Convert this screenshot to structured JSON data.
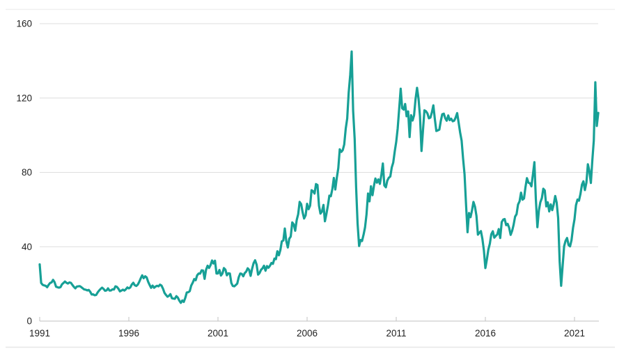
{
  "colors": {
    "line": "#17a096",
    "grid": "#dedede",
    "axis": "#c2c2c2",
    "tick_text": "#1f1f1f",
    "frame_top": "#f0f0f0",
    "frame_bottom": "#e7e7e7",
    "background": "#ffffff"
  },
  "chart_data": {
    "type": "line",
    "grid": true,
    "legend_position": "none",
    "xlabel": "",
    "ylabel": "",
    "ylim": [
      0,
      160
    ],
    "xlim": [
      1991,
      2022.5
    ],
    "y_ticks": [
      0,
      40,
      80,
      120,
      160
    ],
    "y_tick_labels": [
      "0",
      "40",
      "80",
      "120",
      "160"
    ],
    "x_tick_years": [
      1991,
      1996,
      2001,
      2006,
      2011,
      2016,
      2021
    ],
    "x_tick_labels": [
      "1991",
      "1996",
      "2001",
      "2006",
      "2011",
      "2016",
      "2021"
    ],
    "x_start_year": 1991,
    "points_per_year": 12,
    "series": [
      {
        "name": "series-1",
        "color": "#17a096",
        "monthly_values": [
          30.5,
          20.5,
          19.5,
          19.2,
          19.0,
          18.2,
          19.5,
          20.5,
          20.8,
          22.2,
          21.0,
          18.5,
          18.2,
          18.0,
          18.3,
          19.8,
          20.5,
          21.3,
          20.6,
          20.2,
          20.8,
          20.6,
          19.5,
          18.4,
          17.6,
          18.6,
          18.7,
          18.8,
          18.3,
          17.6,
          17.0,
          16.9,
          16.5,
          16.8,
          15.8,
          14.3,
          14.4,
          13.9,
          14.1,
          15.4,
          16.4,
          17.3,
          18.0,
          17.3,
          16.3,
          16.5,
          17.6,
          16.4,
          16.5,
          17.1,
          17.0,
          18.7,
          18.4,
          17.4,
          16.0,
          16.4,
          16.9,
          16.4,
          17.1,
          18.1,
          17.6,
          18.1,
          19.7,
          20.6,
          19.3,
          18.9,
          19.6,
          21.1,
          23.0,
          24.6,
          23.1,
          24.1,
          23.5,
          21.2,
          19.4,
          17.9,
          19.1,
          17.9,
          18.6,
          19.0,
          18.7,
          19.6,
          19.1,
          17.4,
          15.2,
          14.1,
          13.1,
          13.6,
          14.5,
          12.3,
          12.1,
          12.0,
          13.4,
          12.6,
          11.0,
          9.8,
          11.1,
          10.3,
          12.5,
          15.4,
          15.5,
          16.1,
          19.1,
          20.6,
          22.6,
          22.0,
          24.6,
          25.6,
          25.5,
          27.3,
          27.2,
          22.7,
          27.6,
          29.8,
          28.6,
          30.1,
          32.6,
          31.0,
          32.5,
          25.6,
          25.6,
          27.5,
          24.5,
          25.6,
          28.5,
          27.7,
          24.6,
          25.7,
          25.6,
          20.5,
          18.9,
          18.7,
          19.4,
          20.2,
          23.7,
          25.6,
          25.4,
          24.1,
          25.8,
          26.6,
          28.4,
          27.5,
          24.3,
          28.3,
          31.2,
          32.7,
          30.4,
          25.0,
          25.8,
          27.6,
          28.4,
          29.8,
          27.1,
          29.6,
          28.7,
          29.8,
          31.3,
          30.8,
          33.6,
          33.3,
          37.6,
          35.4,
          38.2,
          42.9,
          43.4,
          49.8,
          43.1,
          39.6,
          44.3,
          45.5,
          53.1,
          52.0,
          48.6,
          54.4,
          57.5,
          64.1,
          62.9,
          58.5,
          55.2,
          56.9,
          63.1,
          60.2,
          62.1,
          70.4,
          69.9,
          68.6,
          73.7,
          73.2,
          62.0,
          57.8,
          58.9,
          62.5,
          53.7,
          57.6,
          62.2,
          67.5,
          67.2,
          71.1,
          77.0,
          70.8,
          77.2,
          82.3,
          92.4,
          91.0,
          92.0,
          95.0,
          103.6,
          109.0,
          122.8,
          132.3,
          145.0,
          113.2,
          98.1,
          71.9,
          52.5,
          40.4,
          43.6,
          43.1,
          46.5,
          50.4,
          57.3,
          68.6,
          64.4,
          72.5,
          67.7,
          72.8,
          76.7,
          74.5,
          76.2,
          73.8,
          78.8,
          84.8,
          73.0,
          72.0,
          75.6,
          77.1,
          77.8,
          82.7,
          85.3,
          91.4,
          96.5,
          103.7,
          114.6,
          125.0,
          114.5,
          113.8,
          116.8,
          110.2,
          112.8,
          99.0,
          110.8,
          107.9,
          110.7,
          119.3,
          125.5,
          119.7,
          110.3,
          91.5,
          102.6,
          113.4,
          112.9,
          111.7,
          109.1,
          109.5,
          112.3,
          116.1,
          108.5,
          102.3,
          102.6,
          103.0,
          107.7,
          111.3,
          111.6,
          109.1,
          107.8,
          110.6,
          108.1,
          108.9,
          107.5,
          107.8,
          109.5,
          111.9,
          106.8,
          101.6,
          97.1,
          87.4,
          79.0,
          62.3,
          47.8,
          58.1,
          55.9,
          59.5,
          64.1,
          61.5,
          56.6,
          46.5,
          47.6,
          48.4,
          44.3,
          38.0,
          28.5,
          33.0,
          38.5,
          41.6,
          46.7,
          48.3,
          44.9,
          45.8,
          46.6,
          49.5,
          44.7,
          53.3,
          54.6,
          54.9,
          51.6,
          52.3,
          50.3,
          46.4,
          48.5,
          51.7,
          56.2,
          57.5,
          62.7,
          64.4,
          69.1,
          65.3,
          66.0,
          72.1,
          76.9,
          74.4,
          74.2,
          72.5,
          78.9,
          85.5,
          65.6,
          50.5,
          59.4,
          63.9,
          66.1,
          71.2,
          70.3,
          61.7,
          63.9,
          59.0,
          62.8,
          59.7,
          62.7,
          67.3,
          63.7,
          55.5,
          32.0,
          19.0,
          29.4,
          40.3,
          43.2,
          44.7,
          40.9,
          40.2,
          43.5,
          50.2,
          54.8,
          62.3,
          65.4,
          64.8,
          68.3,
          73.4,
          75.2,
          70.5,
          74.5,
          84.4,
          80.8,
          74.3,
          86.5,
          97.1,
          128.5,
          105.0,
          112.0
        ]
      }
    ]
  }
}
